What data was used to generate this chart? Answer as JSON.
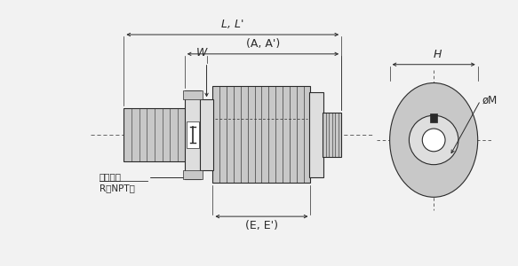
{
  "bg_color": "#f2f2f2",
  "line_color": "#2a2a2a",
  "gray_fill": "#aaaaaa",
  "light_gray": "#c8c8c8",
  "lighter_gray": "#dedede",
  "mid_gray": "#b8b8b8",
  "white": "#ffffff",
  "annotations": {
    "LL_prime": "L, L'",
    "AA_prime": "(A, A')",
    "W": "W",
    "EE_prime": "(E, E')",
    "H": "H",
    "phiM": "øM",
    "label_top": "接続口径",
    "label_bottom": "R（NPT）"
  },
  "layout": {
    "fig_w": 5.83,
    "fig_h": 3.0,
    "dpi": 100
  }
}
